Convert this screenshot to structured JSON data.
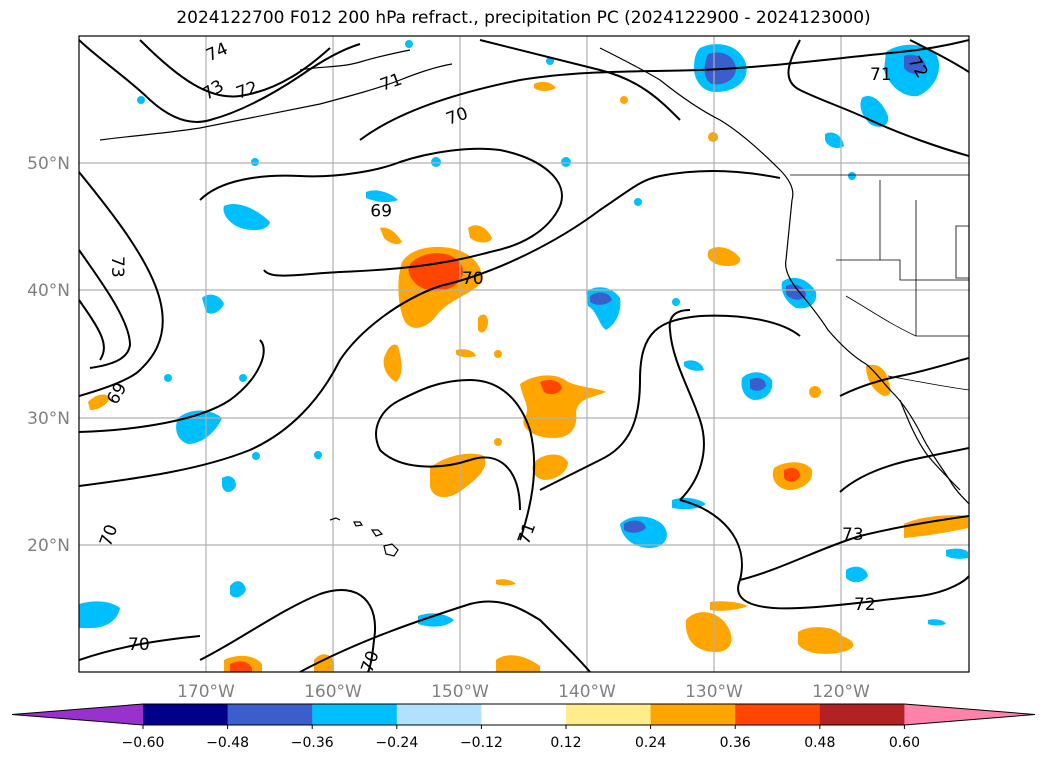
{
  "title": "2024122700 F012 200 hPa refract., precipitation PC (2024122900 - 2024123000)",
  "lat_labels": [
    "50°N",
    "40°N",
    "30°N",
    "20°N"
  ],
  "lon_labels": [
    "170°W",
    "160°W",
    "150°W",
    "140°W",
    "130°W",
    "120°W"
  ],
  "colorbar": {
    "colors": [
      "#9932cc",
      "#00008b",
      "#3a5fcd",
      "#00bfff",
      "#b0e2ff",
      "#ffffff",
      "#ffec8b",
      "#ffa500",
      "#ff4500",
      "#b22222",
      "#ff82ab"
    ],
    "tick_labels": [
      "−0.60",
      "−0.48",
      "−0.36",
      "−0.24",
      "−0.12",
      "0.12",
      "0.24",
      "0.36",
      "0.48",
      "0.60"
    ]
  },
  "contour_labels": [
    "74",
    "73",
    "72",
    "71",
    "72",
    "71",
    "70",
    "69",
    "70",
    "73",
    "69",
    "70",
    "71",
    "73",
    "72",
    "70",
    "70"
  ]
}
